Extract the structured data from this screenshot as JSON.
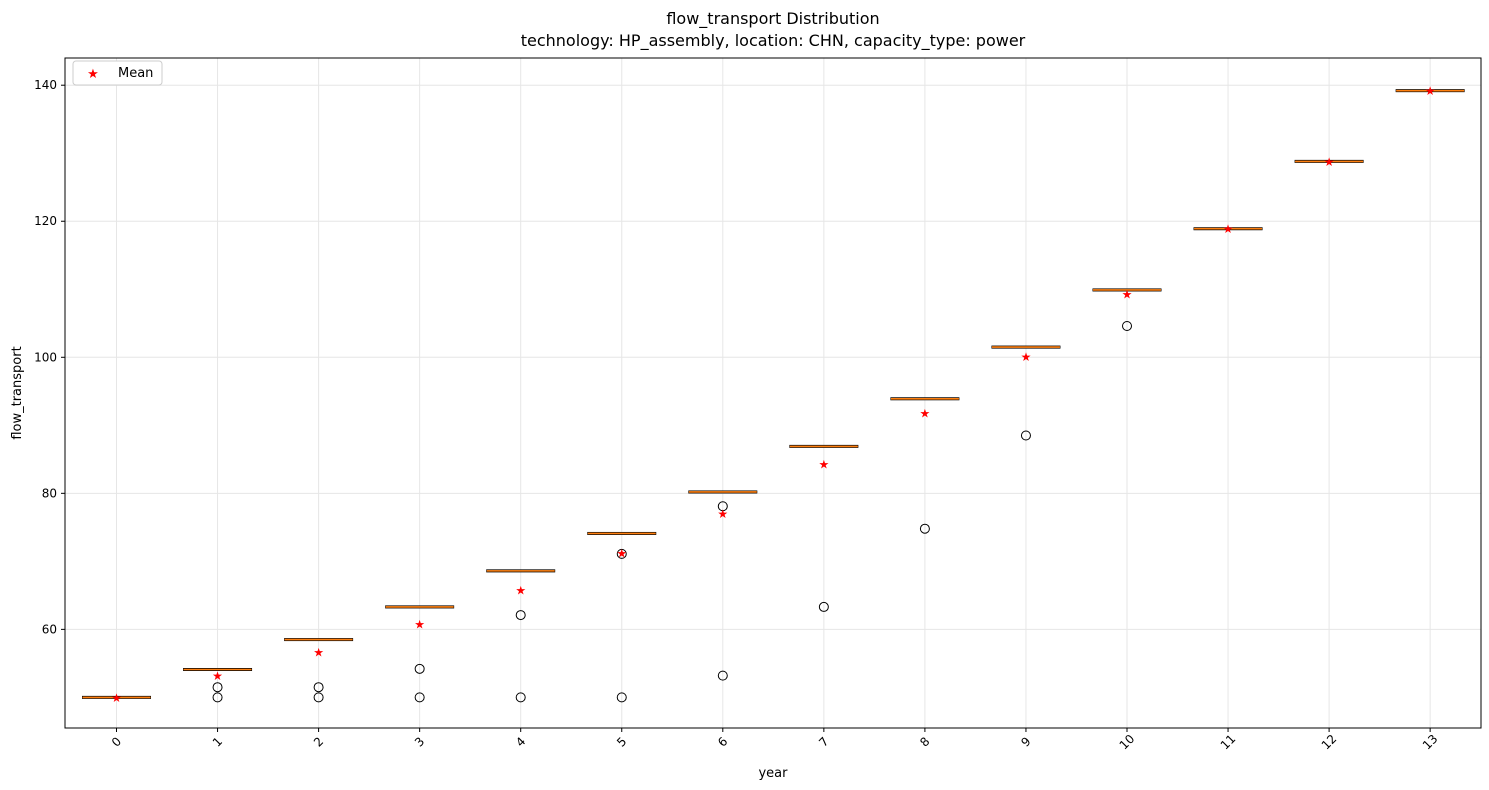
{
  "chart_data": {
    "type": "box",
    "title": "flow_transport Distribution",
    "subtitle": "technology: HP_assembly, location: CHN, capacity_type: power",
    "xlabel": "year",
    "ylabel": "flow_transport",
    "categories": [
      "0",
      "1",
      "2",
      "3",
      "4",
      "5",
      "6",
      "7",
      "8",
      "9",
      "10",
      "11",
      "12",
      "13"
    ],
    "ylim": [
      45.5,
      144
    ],
    "yticks": [
      60,
      80,
      100,
      120,
      140
    ],
    "grid": true,
    "legend": {
      "label": "Mean",
      "placement": "upper-left"
    },
    "median": [
      50.0,
      54.1,
      58.5,
      63.3,
      68.6,
      74.1,
      80.2,
      86.9,
      93.9,
      101.5,
      109.9,
      118.9,
      128.8,
      139.2
    ],
    "mean": [
      50.0,
      53.2,
      56.7,
      60.8,
      65.8,
      71.2,
      77.0,
      84.3,
      91.8,
      100.1,
      109.3,
      118.9,
      128.8,
      139.2
    ],
    "outliers": [
      [],
      [
        51.5,
        50.0
      ],
      [
        51.5,
        50.0
      ],
      [
        54.2,
        50.0
      ],
      [
        62.1,
        50.0
      ],
      [
        71.1,
        50.0
      ],
      [
        78.1,
        53.2
      ],
      [
        63.3
      ],
      [
        74.8
      ],
      [
        88.5
      ],
      [
        104.6
      ],
      [],
      [],
      []
    ],
    "colors": {
      "median": "#ff7f0e",
      "box": "#000000",
      "mean": "#ff0000",
      "grid": "#e6e6e6"
    }
  }
}
